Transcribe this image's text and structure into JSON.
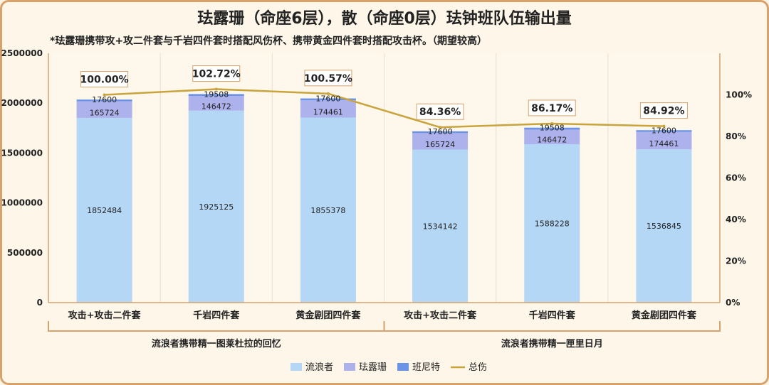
{
  "chart_data": {
    "type": "bar",
    "title": "珐露珊（命座6层），散（命座0层）珐钟班队伍输出量",
    "subtitle": "*珐露珊携带攻+攻二件套与千岩四件套时搭配风伤杯、携带黄金四件套时搭配攻击杯。（期望较高）",
    "categories": [
      "攻击+攻击二件套",
      "千岩四件套",
      "黄金剧团四件套",
      "攻击+攻击二件套",
      "千岩四件套",
      "黄金剧团四件套"
    ],
    "groups": [
      {
        "label": "流浪者携带精一图莱杜拉的回忆",
        "categories": [
          0,
          1,
          2
        ]
      },
      {
        "label": "流浪者携带精一匣里日月",
        "categories": [
          3,
          4,
          5
        ]
      }
    ],
    "series": [
      {
        "name": "流浪者",
        "color": "#b4d7f5",
        "values": [
          1852484,
          1925125,
          1855378,
          1534142,
          1588228,
          1536845
        ]
      },
      {
        "name": "珐露珊",
        "color": "#adb1ec",
        "values": [
          165724,
          146472,
          174461,
          165724,
          146472,
          174461
        ]
      },
      {
        "name": "班尼特",
        "color": "#6b94e6",
        "values": [
          17600,
          19508,
          17600,
          17600,
          19508,
          17600
        ]
      }
    ],
    "line": {
      "name": "总伤",
      "color": "#c9a43a",
      "values": [
        100.0,
        102.72,
        100.57,
        84.36,
        86.17,
        84.92
      ],
      "labels": [
        "100.00%",
        "102.72%",
        "100.57%",
        "84.36%",
        "86.17%",
        "84.92%"
      ]
    },
    "ylim": [
      0,
      2500000
    ],
    "yticks": [
      "0",
      "500000",
      "1000000",
      "1500000",
      "2000000",
      "2500000"
    ],
    "y2lim": [
      0,
      120
    ],
    "y2ticks": [
      "0%",
      "20%",
      "40%",
      "60%",
      "80%",
      "100%"
    ],
    "legend": "bottom-center"
  }
}
